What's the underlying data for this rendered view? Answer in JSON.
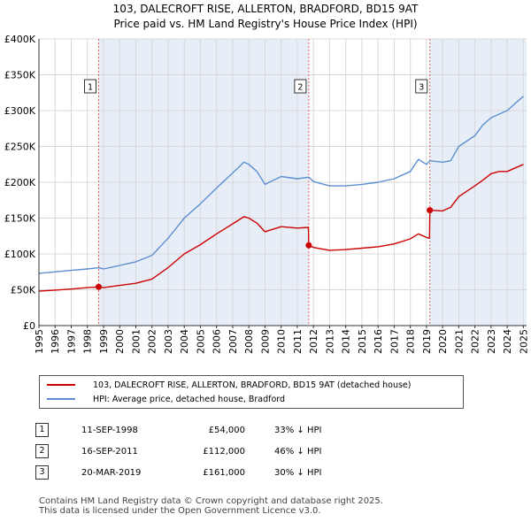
{
  "title_line1": "103, DALECROFT RISE, ALLERTON, BRADFORD, BD15 9AT",
  "title_line2": "Price paid vs. HM Land Registry's House Price Index (HPI)",
  "chart_data": {
    "type": "line",
    "ylim": [
      0,
      400000
    ],
    "xlim": [
      1995,
      2025.2
    ],
    "y_ticks": [
      0,
      50000,
      100000,
      150000,
      200000,
      250000,
      300000,
      350000,
      400000
    ],
    "y_tick_labels": [
      "£0",
      "£50K",
      "£100K",
      "£150K",
      "£200K",
      "£250K",
      "£300K",
      "£350K",
      "£400K"
    ],
    "x_ticks": [
      1995,
      1996,
      1997,
      1998,
      1999,
      2000,
      2001,
      2002,
      2003,
      2004,
      2005,
      2006,
      2007,
      2008,
      2009,
      2010,
      2011,
      2012,
      2013,
      2014,
      2015,
      2016,
      2017,
      2018,
      2019,
      2020,
      2021,
      2022,
      2023,
      2024,
      2025
    ],
    "grid": true,
    "colors": {
      "property": "#cc0000",
      "hpi": "#5b8fd0",
      "shade": "#e8eef8",
      "marker_line": "#e06060"
    },
    "sales": [
      {
        "label": "1",
        "x": 1998.7,
        "price": 54000
      },
      {
        "label": "2",
        "x": 2011.71,
        "price": 112000
      },
      {
        "label": "3",
        "x": 2019.21,
        "price": 161000
      }
    ],
    "series": [
      {
        "name": "HPI",
        "x": [
          1995,
          1996,
          1997,
          1998,
          1998.7,
          1999,
          2000,
          2001,
          2002,
          2003,
          2004,
          2005,
          2006,
          2007,
          2007.7,
          2008,
          2008.5,
          2009,
          2010,
          2011,
          2011.71,
          2012,
          2013,
          2014,
          2015,
          2016,
          2017,
          2018,
          2018.5,
          2019,
          2019.21,
          2020,
          2020.5,
          2021,
          2022,
          2022.5,
          2023,
          2023.5,
          2024,
          2024.5,
          2025
        ],
        "values": [
          73000,
          75000,
          77000,
          79000,
          80700,
          79000,
          84000,
          89000,
          98000,
          122000,
          150000,
          170000,
          192000,
          213000,
          228000,
          225000,
          215000,
          197000,
          208000,
          205000,
          207000,
          201000,
          195000,
          195000,
          197000,
          200000,
          205000,
          215000,
          232000,
          225000,
          230000,
          228000,
          230000,
          250000,
          265000,
          280000,
          290000,
          295000,
          300000,
          310000,
          320000
        ]
      },
      {
        "name": "Property",
        "x": [
          1995,
          1996,
          1997,
          1998,
          1998.7,
          1999,
          2000,
          2001,
          2002,
          2003,
          2004,
          2005,
          2006,
          2007,
          2007.7,
          2008,
          2008.5,
          2009,
          2010,
          2011,
          2011.69,
          2011.71,
          2012,
          2013,
          2014,
          2015,
          2016,
          2017,
          2018,
          2018.5,
          2019,
          2019.19,
          2019.21,
          2020,
          2020.5,
          2021,
          2022,
          2022.5,
          2023,
          2023.5,
          2024,
          2024.5,
          2025
        ],
        "values": [
          48000,
          49500,
          51000,
          53000,
          54000,
          53000,
          56000,
          59000,
          65000,
          81000,
          100000,
          113000,
          128000,
          142000,
          152000,
          150000,
          143000,
          131000,
          138000,
          136000,
          137000,
          112000,
          109000,
          105000,
          106000,
          108000,
          110000,
          114000,
          121000,
          128000,
          123000,
          122000,
          161000,
          160000,
          165000,
          180000,
          195000,
          203000,
          212000,
          215000,
          215000,
          220000,
          225000
        ]
      }
    ],
    "legend": [
      {
        "label": "103, DALECROFT RISE, ALLERTON, BRADFORD, BD15 9AT (detached house)",
        "color": "#cc0000"
      },
      {
        "label": "HPI: Average price, detached house, Bradford",
        "color": "#5b8fd0"
      }
    ]
  },
  "transactions": [
    {
      "num": "1",
      "date": "11-SEP-1998",
      "price": "£54,000",
      "hpi": "33% ↓ HPI"
    },
    {
      "num": "2",
      "date": "16-SEP-2011",
      "price": "£112,000",
      "hpi": "46% ↓ HPI"
    },
    {
      "num": "3",
      "date": "20-MAR-2019",
      "price": "£161,000",
      "hpi": "30% ↓ HPI"
    }
  ],
  "footer_line1": "Contains HM Land Registry data © Crown copyright and database right 2025.",
  "footer_line2": "This data is licensed under the Open Government Licence v3.0."
}
